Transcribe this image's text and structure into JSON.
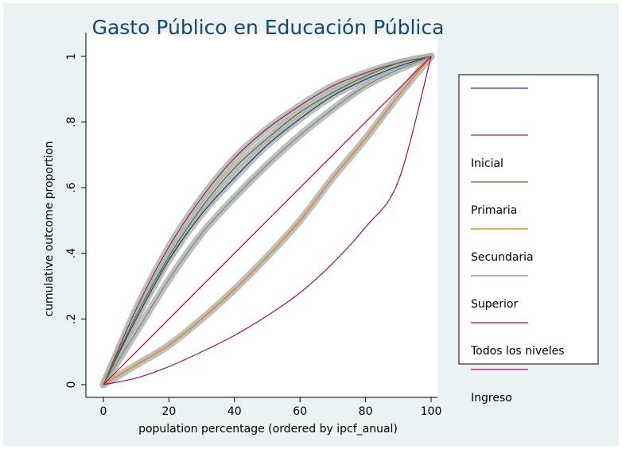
{
  "chart_data": {
    "type": "line",
    "title": "Gasto Público en Educación Pública",
    "xlabel": "population percentage (ordered by ipcf_anual)",
    "ylabel": "cumulative outcome proportion",
    "xlim": [
      0,
      100
    ],
    "ylim": [
      0,
      1
    ],
    "xticks": [
      0,
      20,
      40,
      60,
      80,
      100
    ],
    "xtick_labels": [
      "0",
      "20",
      "40",
      "60",
      "80",
      "100"
    ],
    "yticks": [
      0,
      0.2,
      0.4,
      0.6,
      0.8,
      1
    ],
    "ytick_labels": [
      "0",
      ".2",
      ".4",
      ".6",
      ".8",
      "1"
    ],
    "grid": false,
    "legend_position": "right",
    "x": [
      0,
      10,
      20,
      30,
      40,
      50,
      60,
      70,
      80,
      90,
      100
    ],
    "series": [
      {
        "name": "",
        "color": "#1a476f",
        "band": true,
        "values": [
          0,
          0.2,
          0.38,
          0.52,
          0.63,
          0.73,
          0.81,
          0.88,
          0.93,
          0.97,
          1
        ]
      },
      {
        "name": "Inicial",
        "color": "#90353b",
        "band": true,
        "values": [
          0,
          0.23,
          0.42,
          0.57,
          0.69,
          0.78,
          0.85,
          0.91,
          0.95,
          0.98,
          1
        ]
      },
      {
        "name": "Primaria",
        "color": "#55752f",
        "band": true,
        "values": [
          0,
          0.21,
          0.39,
          0.54,
          0.66,
          0.75,
          0.83,
          0.89,
          0.94,
          0.98,
          1
        ]
      },
      {
        "name": "Secundaria",
        "color": "#e37e00",
        "band": true,
        "values": [
          0,
          0.06,
          0.12,
          0.2,
          0.29,
          0.39,
          0.5,
          0.63,
          0.75,
          0.88,
          1
        ]
      },
      {
        "name": "Superior",
        "color": "#6e8e84",
        "band": true,
        "values": [
          0,
          0.16,
          0.32,
          0.46,
          0.57,
          0.67,
          0.76,
          0.84,
          0.91,
          0.96,
          1
        ]
      },
      {
        "name": "Todos los niveles",
        "color": "#c10534",
        "band": false,
        "values": [
          0,
          0.1,
          0.2,
          0.3,
          0.4,
          0.5,
          0.6,
          0.7,
          0.8,
          0.9,
          1
        ]
      },
      {
        "name": "Ingreso",
        "color": "#a0105a",
        "band": false,
        "values": [
          0,
          0.02,
          0.055,
          0.1,
          0.15,
          0.21,
          0.28,
          0.37,
          0.48,
          0.62,
          1
        ]
      }
    ]
  }
}
